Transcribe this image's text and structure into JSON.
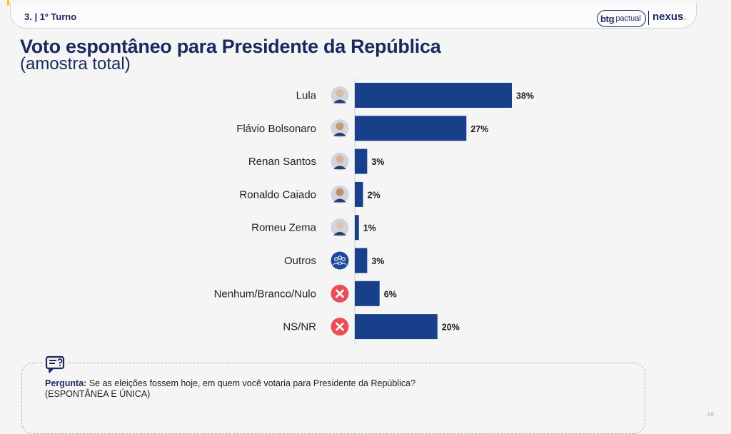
{
  "header": {
    "section_label": "3. | 1º Turno",
    "logo_btg_main": "btg",
    "logo_btg_sub": "pactual",
    "logo_nexus": "nexus",
    "logo_nexus_dot": "."
  },
  "title": "Voto espontâneo para Presidente da República",
  "subtitle": "(amostra total)",
  "question": {
    "label": "Pergunta:",
    "text": " Se as eleições fossem hoje, em quem você votaria para Presidente da República?",
    "note": "(ESPONTÂNEA E ÚNICA)",
    "icon": "speech-bubble-icon"
  },
  "page_number": "-18-",
  "colors": {
    "bar": "#173f8a",
    "title": "#1b2a5e",
    "cross": "#ea4f57",
    "group": "#1c4a9c"
  },
  "chart_data": {
    "type": "bar",
    "orientation": "horizontal",
    "title": "Voto espontâneo para Presidente da República",
    "subtitle": "(amostra total)",
    "categories": [
      "Lula",
      "Flávio Bolsonaro",
      "Renan Santos",
      "Ronaldo Caiado",
      "Romeu Zema",
      "Outros",
      "Nenhum/Branco/Nulo",
      "NS/NR"
    ],
    "values": [
      38,
      27,
      3,
      2,
      1,
      3,
      6,
      20
    ],
    "value_labels": [
      "38%",
      "27%",
      "3%",
      "2%",
      "1%",
      "3%",
      "6%",
      "20%"
    ],
    "icons": [
      "avatar-icon",
      "avatar-icon",
      "avatar-icon",
      "avatar-icon",
      "avatar-icon",
      "group-icon",
      "cross-icon",
      "cross-icon"
    ],
    "unit": "%",
    "xlim": [
      0,
      38
    ],
    "grid": false,
    "legend": "none"
  }
}
